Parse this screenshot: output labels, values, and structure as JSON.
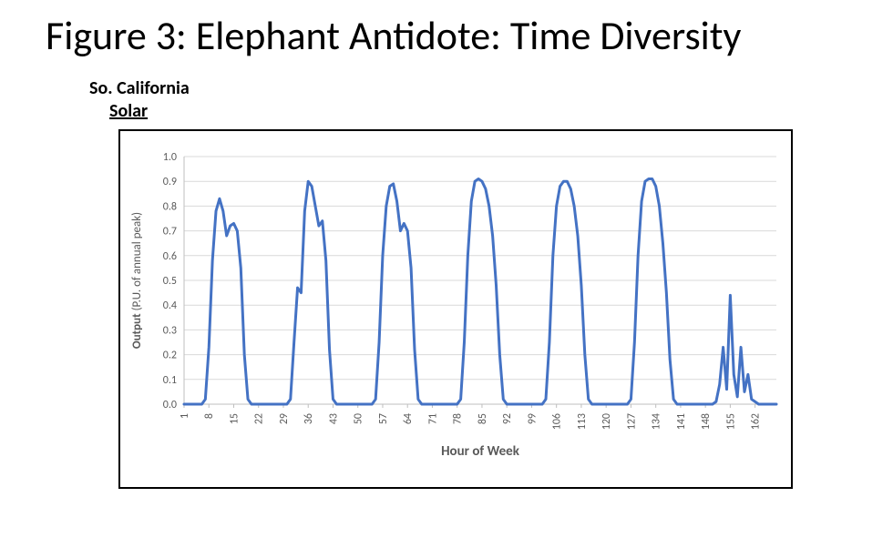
{
  "title": "Figure 3: Elephant Antidote: Time Diversity",
  "subtitle_line1": "So. California",
  "subtitle_line2": "Solar",
  "chart": {
    "type": "line",
    "xlabel": "Hour of Week",
    "ylabel": "Output (P.U. of annual peak)",
    "ylabel_highlight_word": "Output",
    "xlabel_fontsize": 15,
    "ylabel_fontsize": 13,
    "tick_fontsize": 12,
    "axis_text_color": "#595959",
    "grid_color": "#d9d9d9",
    "axis_line_color": "#bfbfbf",
    "line_color": "#4472c4",
    "line_width": 3,
    "background_color": "#ffffff",
    "ylim": [
      0.0,
      1.0
    ],
    "ytick_step": 0.1,
    "y_ticks": [
      "0.0",
      "0.1",
      "0.2",
      "0.3",
      "0.4",
      "0.5",
      "0.6",
      "0.7",
      "0.8",
      "0.9",
      "1.0"
    ],
    "x_ticks": [
      1,
      8,
      15,
      22,
      29,
      36,
      43,
      50,
      57,
      64,
      71,
      78,
      85,
      92,
      99,
      106,
      113,
      120,
      127,
      134,
      141,
      148,
      155,
      162
    ],
    "x_min": 1,
    "x_max": 168,
    "series": [
      {
        "x": 1,
        "y": 0.0
      },
      {
        "x": 2,
        "y": 0.0
      },
      {
        "x": 3,
        "y": 0.0
      },
      {
        "x": 4,
        "y": 0.0
      },
      {
        "x": 5,
        "y": 0.0
      },
      {
        "x": 6,
        "y": 0.0
      },
      {
        "x": 7,
        "y": 0.02
      },
      {
        "x": 8,
        "y": 0.23
      },
      {
        "x": 9,
        "y": 0.58
      },
      {
        "x": 10,
        "y": 0.78
      },
      {
        "x": 11,
        "y": 0.83
      },
      {
        "x": 12,
        "y": 0.78
      },
      {
        "x": 13,
        "y": 0.68
      },
      {
        "x": 14,
        "y": 0.72
      },
      {
        "x": 15,
        "y": 0.73
      },
      {
        "x": 16,
        "y": 0.7
      },
      {
        "x": 17,
        "y": 0.55
      },
      {
        "x": 18,
        "y": 0.2
      },
      {
        "x": 19,
        "y": 0.02
      },
      {
        "x": 20,
        "y": 0.0
      },
      {
        "x": 21,
        "y": 0.0
      },
      {
        "x": 22,
        "y": 0.0
      },
      {
        "x": 23,
        "y": 0.0
      },
      {
        "x": 24,
        "y": 0.0
      },
      {
        "x": 25,
        "y": 0.0
      },
      {
        "x": 26,
        "y": 0.0
      },
      {
        "x": 27,
        "y": 0.0
      },
      {
        "x": 28,
        "y": 0.0
      },
      {
        "x": 29,
        "y": 0.0
      },
      {
        "x": 30,
        "y": 0.0
      },
      {
        "x": 31,
        "y": 0.02
      },
      {
        "x": 32,
        "y": 0.25
      },
      {
        "x": 33,
        "y": 0.47
      },
      {
        "x": 34,
        "y": 0.45
      },
      {
        "x": 35,
        "y": 0.78
      },
      {
        "x": 36,
        "y": 0.9
      },
      {
        "x": 37,
        "y": 0.88
      },
      {
        "x": 38,
        "y": 0.8
      },
      {
        "x": 39,
        "y": 0.72
      },
      {
        "x": 40,
        "y": 0.74
      },
      {
        "x": 41,
        "y": 0.58
      },
      {
        "x": 42,
        "y": 0.22
      },
      {
        "x": 43,
        "y": 0.02
      },
      {
        "x": 44,
        "y": 0.0
      },
      {
        "x": 45,
        "y": 0.0
      },
      {
        "x": 46,
        "y": 0.0
      },
      {
        "x": 47,
        "y": 0.0
      },
      {
        "x": 48,
        "y": 0.0
      },
      {
        "x": 49,
        "y": 0.0
      },
      {
        "x": 50,
        "y": 0.0
      },
      {
        "x": 51,
        "y": 0.0
      },
      {
        "x": 52,
        "y": 0.0
      },
      {
        "x": 53,
        "y": 0.0
      },
      {
        "x": 54,
        "y": 0.0
      },
      {
        "x": 55,
        "y": 0.02
      },
      {
        "x": 56,
        "y": 0.25
      },
      {
        "x": 57,
        "y": 0.6
      },
      {
        "x": 58,
        "y": 0.8
      },
      {
        "x": 59,
        "y": 0.88
      },
      {
        "x": 60,
        "y": 0.89
      },
      {
        "x": 61,
        "y": 0.82
      },
      {
        "x": 62,
        "y": 0.7
      },
      {
        "x": 63,
        "y": 0.73
      },
      {
        "x": 64,
        "y": 0.7
      },
      {
        "x": 65,
        "y": 0.55
      },
      {
        "x": 66,
        "y": 0.22
      },
      {
        "x": 67,
        "y": 0.02
      },
      {
        "x": 68,
        "y": 0.0
      },
      {
        "x": 69,
        "y": 0.0
      },
      {
        "x": 70,
        "y": 0.0
      },
      {
        "x": 71,
        "y": 0.0
      },
      {
        "x": 72,
        "y": 0.0
      },
      {
        "x": 73,
        "y": 0.0
      },
      {
        "x": 74,
        "y": 0.0
      },
      {
        "x": 75,
        "y": 0.0
      },
      {
        "x": 76,
        "y": 0.0
      },
      {
        "x": 77,
        "y": 0.0
      },
      {
        "x": 78,
        "y": 0.0
      },
      {
        "x": 79,
        "y": 0.02
      },
      {
        "x": 80,
        "y": 0.25
      },
      {
        "x": 81,
        "y": 0.6
      },
      {
        "x": 82,
        "y": 0.82
      },
      {
        "x": 83,
        "y": 0.9
      },
      {
        "x": 84,
        "y": 0.91
      },
      {
        "x": 85,
        "y": 0.9
      },
      {
        "x": 86,
        "y": 0.87
      },
      {
        "x": 87,
        "y": 0.8
      },
      {
        "x": 88,
        "y": 0.68
      },
      {
        "x": 89,
        "y": 0.48
      },
      {
        "x": 90,
        "y": 0.2
      },
      {
        "x": 91,
        "y": 0.02
      },
      {
        "x": 92,
        "y": 0.0
      },
      {
        "x": 93,
        "y": 0.0
      },
      {
        "x": 94,
        "y": 0.0
      },
      {
        "x": 95,
        "y": 0.0
      },
      {
        "x": 96,
        "y": 0.0
      },
      {
        "x": 97,
        "y": 0.0
      },
      {
        "x": 98,
        "y": 0.0
      },
      {
        "x": 99,
        "y": 0.0
      },
      {
        "x": 100,
        "y": 0.0
      },
      {
        "x": 101,
        "y": 0.0
      },
      {
        "x": 102,
        "y": 0.0
      },
      {
        "x": 103,
        "y": 0.02
      },
      {
        "x": 104,
        "y": 0.25
      },
      {
        "x": 105,
        "y": 0.6
      },
      {
        "x": 106,
        "y": 0.8
      },
      {
        "x": 107,
        "y": 0.88
      },
      {
        "x": 108,
        "y": 0.9
      },
      {
        "x": 109,
        "y": 0.9
      },
      {
        "x": 110,
        "y": 0.87
      },
      {
        "x": 111,
        "y": 0.8
      },
      {
        "x": 112,
        "y": 0.68
      },
      {
        "x": 113,
        "y": 0.48
      },
      {
        "x": 114,
        "y": 0.2
      },
      {
        "x": 115,
        "y": 0.02
      },
      {
        "x": 116,
        "y": 0.0
      },
      {
        "x": 117,
        "y": 0.0
      },
      {
        "x": 118,
        "y": 0.0
      },
      {
        "x": 119,
        "y": 0.0
      },
      {
        "x": 120,
        "y": 0.0
      },
      {
        "x": 121,
        "y": 0.0
      },
      {
        "x": 122,
        "y": 0.0
      },
      {
        "x": 123,
        "y": 0.0
      },
      {
        "x": 124,
        "y": 0.0
      },
      {
        "x": 125,
        "y": 0.0
      },
      {
        "x": 126,
        "y": 0.0
      },
      {
        "x": 127,
        "y": 0.02
      },
      {
        "x": 128,
        "y": 0.25
      },
      {
        "x": 129,
        "y": 0.6
      },
      {
        "x": 130,
        "y": 0.82
      },
      {
        "x": 131,
        "y": 0.9
      },
      {
        "x": 132,
        "y": 0.91
      },
      {
        "x": 133,
        "y": 0.91
      },
      {
        "x": 134,
        "y": 0.88
      },
      {
        "x": 135,
        "y": 0.8
      },
      {
        "x": 136,
        "y": 0.65
      },
      {
        "x": 137,
        "y": 0.45
      },
      {
        "x": 138,
        "y": 0.18
      },
      {
        "x": 139,
        "y": 0.02
      },
      {
        "x": 140,
        "y": 0.0
      },
      {
        "x": 141,
        "y": 0.0
      },
      {
        "x": 142,
        "y": 0.0
      },
      {
        "x": 143,
        "y": 0.0
      },
      {
        "x": 144,
        "y": 0.0
      },
      {
        "x": 145,
        "y": 0.0
      },
      {
        "x": 146,
        "y": 0.0
      },
      {
        "x": 147,
        "y": 0.0
      },
      {
        "x": 148,
        "y": 0.0
      },
      {
        "x": 149,
        "y": 0.0
      },
      {
        "x": 150,
        "y": 0.0
      },
      {
        "x": 151,
        "y": 0.01
      },
      {
        "x": 152,
        "y": 0.08
      },
      {
        "x": 153,
        "y": 0.23
      },
      {
        "x": 154,
        "y": 0.06
      },
      {
        "x": 155,
        "y": 0.44
      },
      {
        "x": 156,
        "y": 0.12
      },
      {
        "x": 157,
        "y": 0.03
      },
      {
        "x": 158,
        "y": 0.23
      },
      {
        "x": 159,
        "y": 0.05
      },
      {
        "x": 160,
        "y": 0.12
      },
      {
        "x": 161,
        "y": 0.02
      },
      {
        "x": 162,
        "y": 0.01
      },
      {
        "x": 163,
        "y": 0.0
      },
      {
        "x": 164,
        "y": 0.0
      },
      {
        "x": 165,
        "y": 0.0
      },
      {
        "x": 166,
        "y": 0.0
      },
      {
        "x": 167,
        "y": 0.0
      },
      {
        "x": 168,
        "y": 0.0
      }
    ]
  }
}
